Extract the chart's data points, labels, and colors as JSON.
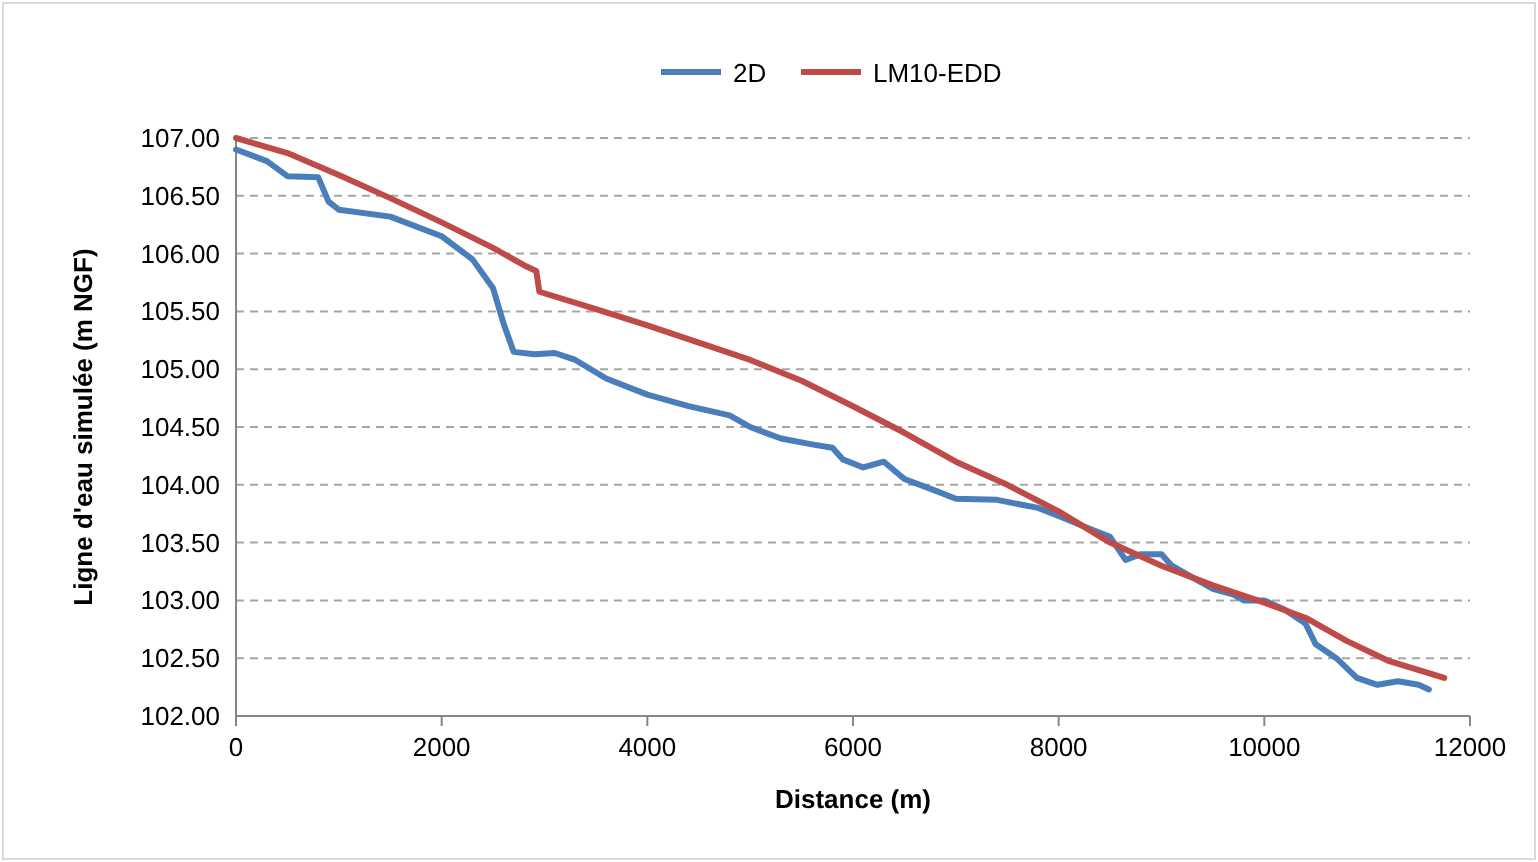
{
  "chart_data": {
    "type": "line",
    "xlabel": "Distance (m)",
    "ylabel": "Ligne d'eau simulée (m NGF)",
    "xlim": [
      0,
      12000
    ],
    "xticks": [
      0,
      2000,
      4000,
      6000,
      8000,
      10000,
      12000
    ],
    "ylim": [
      102,
      107
    ],
    "yticks": [
      {
        "value": 102,
        "label": "102.00"
      },
      {
        "value": 102.5,
        "label": "102.50"
      },
      {
        "value": 103,
        "label": "103.00"
      },
      {
        "value": 103.5,
        "label": "103.50"
      },
      {
        "value": 104,
        "label": "104.00"
      },
      {
        "value": 104.5,
        "label": "104.50"
      },
      {
        "value": 105,
        "label": "105.00"
      },
      {
        "value": 105.5,
        "label": "105.50"
      },
      {
        "value": 106,
        "label": "106.00"
      },
      {
        "value": 106.5,
        "label": "106.50"
      },
      {
        "value": 107,
        "label": "107.00"
      }
    ],
    "grid": "y",
    "legend": "top",
    "line_style": "solid",
    "marker": "none",
    "series": [
      {
        "name": "2D",
        "color": "#4a7ebb",
        "x": [
          0,
          300,
          500,
          800,
          900,
          1000,
          1500,
          2000,
          2300,
          2500,
          2600,
          2700,
          2900,
          3100,
          3300,
          3600,
          4000,
          4400,
          4800,
          5000,
          5300,
          5600,
          5800,
          5900,
          6100,
          6300,
          6500,
          6800,
          7000,
          7400,
          7800,
          8000,
          8300,
          8500,
          8650,
          8800,
          9000,
          9100,
          9300,
          9500,
          9700,
          9800,
          10000,
          10200,
          10400,
          10500,
          10700,
          10900,
          11100,
          11300,
          11500,
          11600
        ],
        "values": [
          106.9,
          106.8,
          106.67,
          106.66,
          106.45,
          106.38,
          106.32,
          106.15,
          105.95,
          105.7,
          105.4,
          105.15,
          105.13,
          105.14,
          105.08,
          104.92,
          104.78,
          104.68,
          104.6,
          104.5,
          104.4,
          104.35,
          104.32,
          104.22,
          104.15,
          104.2,
          104.05,
          103.95,
          103.88,
          103.87,
          103.8,
          103.73,
          103.62,
          103.55,
          103.35,
          103.4,
          103.4,
          103.3,
          103.2,
          103.1,
          103.05,
          103,
          103,
          102.92,
          102.8,
          102.62,
          102.5,
          102.33,
          102.27,
          102.3,
          102.27,
          102.23
        ]
      },
      {
        "name": "LM10-EDD",
        "color": "#be4b48",
        "x": [
          0,
          500,
          1000,
          1500,
          2000,
          2500,
          2800,
          2920,
          2950,
          3500,
          4000,
          4500,
          5000,
          5500,
          6000,
          6500,
          7000,
          7500,
          8000,
          8500,
          9000,
          9500,
          10000,
          10400,
          10800,
          11200,
          11750
        ],
        "values": [
          107,
          106.87,
          106.68,
          106.48,
          106.27,
          106.05,
          105.9,
          105.85,
          105.67,
          105.52,
          105.38,
          105.23,
          105.08,
          104.9,
          104.68,
          104.45,
          104.2,
          104,
          103.77,
          103.5,
          103.3,
          103.13,
          102.98,
          102.85,
          102.65,
          102.48,
          102.33
        ]
      }
    ]
  }
}
